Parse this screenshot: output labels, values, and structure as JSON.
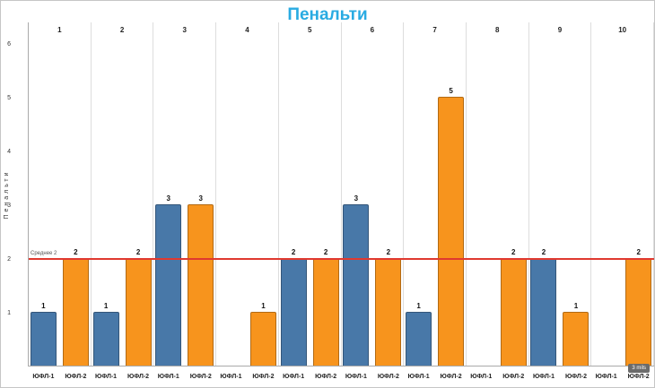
{
  "title": "Пенальти",
  "y_axis": {
    "label": "Пенальти"
  },
  "badge": "3 mils",
  "chart_data": {
    "type": "bar",
    "title": "Пенальти",
    "xlabel": "",
    "ylabel": "Пенальти",
    "categories": [
      "1",
      "2",
      "3",
      "4",
      "5",
      "6",
      "7",
      "8",
      "9",
      "10"
    ],
    "series": [
      {
        "name": "ЮФЛ-1",
        "color": "#4878a8",
        "values": [
          1,
          1,
          3,
          0,
          2,
          3,
          1,
          0,
          2,
          0
        ]
      },
      {
        "name": "ЮФЛ-2",
        "color": "#f7941d",
        "values": [
          2,
          2,
          3,
          1,
          2,
          2,
          5,
          2,
          1,
          2
        ]
      }
    ],
    "ylim": [
      0,
      6
    ],
    "yticks": [
      1,
      2,
      3,
      4,
      5,
      6
    ],
    "grid": "vertical",
    "legend_position": "none",
    "value_labels": true,
    "reference_line": {
      "value": 2,
      "label": "Среднее 2",
      "color": "#e0392f"
    }
  }
}
